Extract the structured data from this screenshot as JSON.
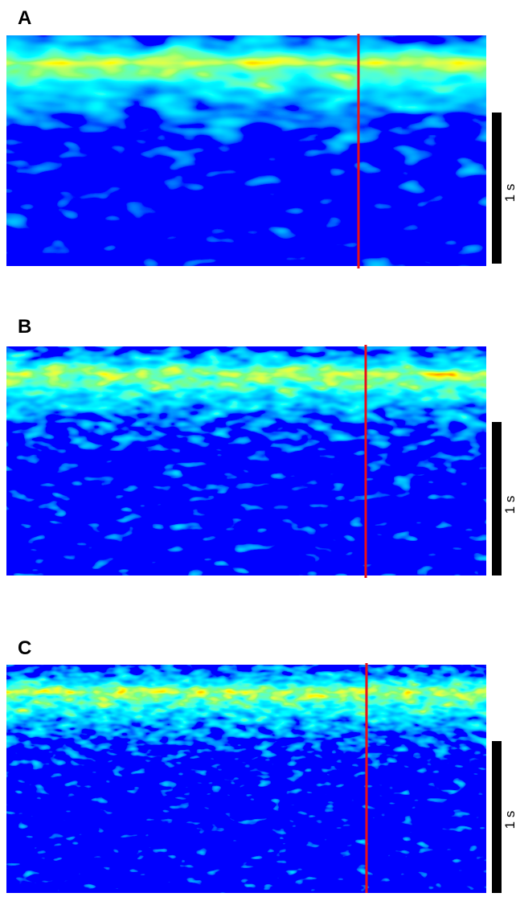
{
  "panels": [
    {
      "label": "A",
      "scale_bar": "1 s"
    },
    {
      "label": "B",
      "scale_bar": "1 s"
    },
    {
      "label": "C",
      "scale_bar": "1 s"
    }
  ]
}
